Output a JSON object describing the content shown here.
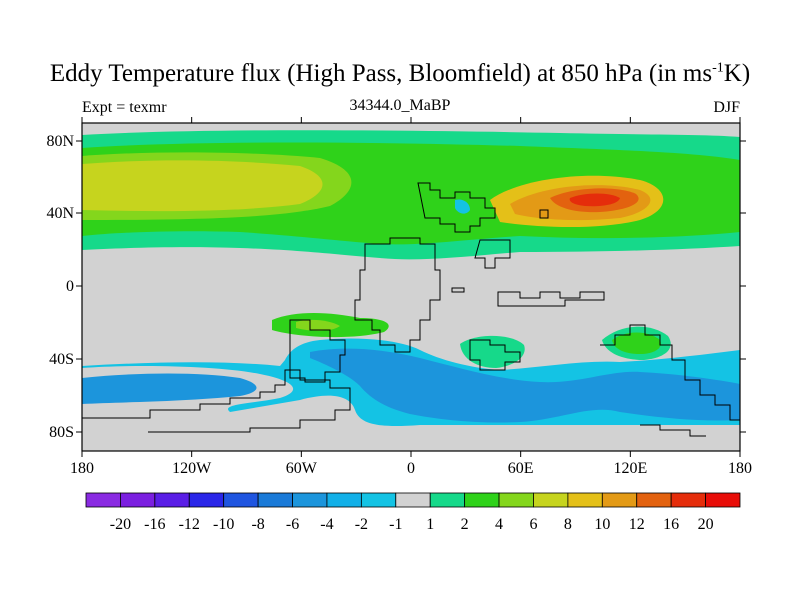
{
  "title": {
    "main": "Eddy Temperature flux (High Pass, Bloomfield) at 850 hPa (in ms",
    "sup": "-1",
    "tail": "K)"
  },
  "subtitle": {
    "left": "Expt = texmr",
    "center": "34344.0_MaBP",
    "right": "DJF"
  },
  "axes": {
    "x_ticks": [
      "180",
      "120W",
      "60W",
      "0",
      "60E",
      "120E",
      "180"
    ],
    "y_ticks": [
      "80N",
      "40N",
      "0",
      "40S",
      "80S"
    ]
  },
  "colorbar": {
    "labels": [
      "-20",
      "-16",
      "-12",
      "-10",
      "-8",
      "-6",
      "-4",
      "-2",
      "-1",
      "1",
      "2",
      "4",
      "6",
      "8",
      "10",
      "12",
      "16",
      "20"
    ],
    "colors": [
      "#8a2be2",
      "#7b1fe0",
      "#5a1ee6",
      "#2a26e8",
      "#1f55e0",
      "#1a7ad8",
      "#1c95dc",
      "#12b0e8",
      "#14c3e4",
      "#d2d2d2",
      "#16d98a",
      "#2fd21a",
      "#84d61c",
      "#c6d41e",
      "#e4c018",
      "#e39a16",
      "#e3620f",
      "#e52d0b",
      "#e80d08"
    ]
  },
  "colors": {
    "land_sea_bg": "#d2d2d2",
    "coast": "#000000"
  }
}
